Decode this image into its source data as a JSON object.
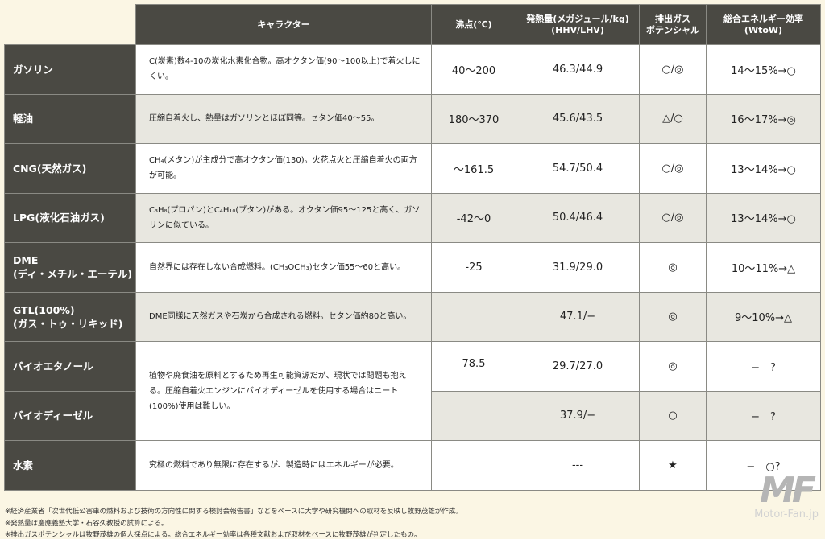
{
  "header": {
    "character": "キャラクター",
    "boiling_point": "沸点(℃)",
    "heat_value": "発熱量(メガジュール/kg)\n(HHV/LHV)",
    "exhaust": "排出ガス\nポテンシャル",
    "efficiency": "総合エネルギー効率\n(WtoW)"
  },
  "rows": [
    {
      "name": "ガソリン",
      "desc": "C(炭素)数4-10の炭化水素化合物。高オクタン価(90〜100以上)で着火しにくい。",
      "bp": "40〜200",
      "heat": "46.3/44.9",
      "exhaust": "○/◎",
      "eff": "14〜15%→○"
    },
    {
      "name": "軽油",
      "desc": "圧縮自着火し、熱量はガソリンとほぼ同等。セタン価40〜55。",
      "bp": "180〜370",
      "heat": "45.6/43.5",
      "exhaust": "△/○",
      "eff": "16〜17%→◎"
    },
    {
      "name": "CNG(天然ガス)",
      "desc": "CH₄(メタン)が主成分で高オクタン価(130)。火花点火と圧縮自着火の両方が可能。",
      "bp": "〜161.5",
      "heat": "54.7/50.4",
      "exhaust": "○/◎",
      "eff": "13〜14%→○"
    },
    {
      "name": "LPG(液化石油ガス)",
      "desc": "C₃H₈(プロパン)とC₄H₁₀(ブタン)がある。オクタン価95〜125と高く、ガソリンに似ている。",
      "bp": "-42〜0",
      "heat": "50.4/46.4",
      "exhaust": "○/◎",
      "eff": "13〜14%→○"
    },
    {
      "name": "DME\n(ディ・メチル・エーテル)",
      "desc": "自然界には存在しない合成燃料。(CH₃OCH₃)セタン価55〜60と高い。",
      "bp": "-25",
      "heat": "31.9/29.0",
      "exhaust": "◎",
      "eff": "10〜11%→△"
    },
    {
      "name": "GTL(100%)\n(ガス・トゥ・リキッド)",
      "desc": "DME同様に天然ガスや石炭から合成される燃料。セタン価約80と高い。",
      "bp": "",
      "heat": "47.1/−",
      "exhaust": "◎",
      "eff": "9〜10%→△"
    },
    {
      "name": "バイオエタノール",
      "desc": "植物や廃食油を原料とするため再生可能資源だが、現状では問題も抱える。圧縮自着火エンジンにバイオディーゼルを使用する場合はニート(100%)使用は難しい。",
      "bp": "78.5",
      "heat": "29.7/27.0",
      "exhaust": "◎",
      "eff": "−　?"
    },
    {
      "name": "バイオディーゼル",
      "bp": "",
      "heat": "37.9/−",
      "exhaust": "○",
      "eff": "−　?"
    },
    {
      "name": "水素",
      "desc": "究極の燃料であり無限に存在するが、製造時にはエネルギーが必要。",
      "bp": "",
      "heat": "---",
      "exhaust": "★",
      "eff": "−　○?"
    }
  ],
  "footnotes": [
    "※経済産業省「次世代低公害車の燃料および技術の方向性に関する検討会報告書」などをベースに大学や研究機関への取材を反映し牧野茂雄が作成。",
    "※発熱量は慶應義塾大学・石谷久教授の試算による。",
    "※排出ガスポテンシャルは牧野茂雄の個人採点による。総合エネルギー効率は各種文献および取材をベースに牧野茂雄が判定したもの。"
  ],
  "watermark": {
    "logo": "MF",
    "site": "Motor-Fan.jp"
  }
}
